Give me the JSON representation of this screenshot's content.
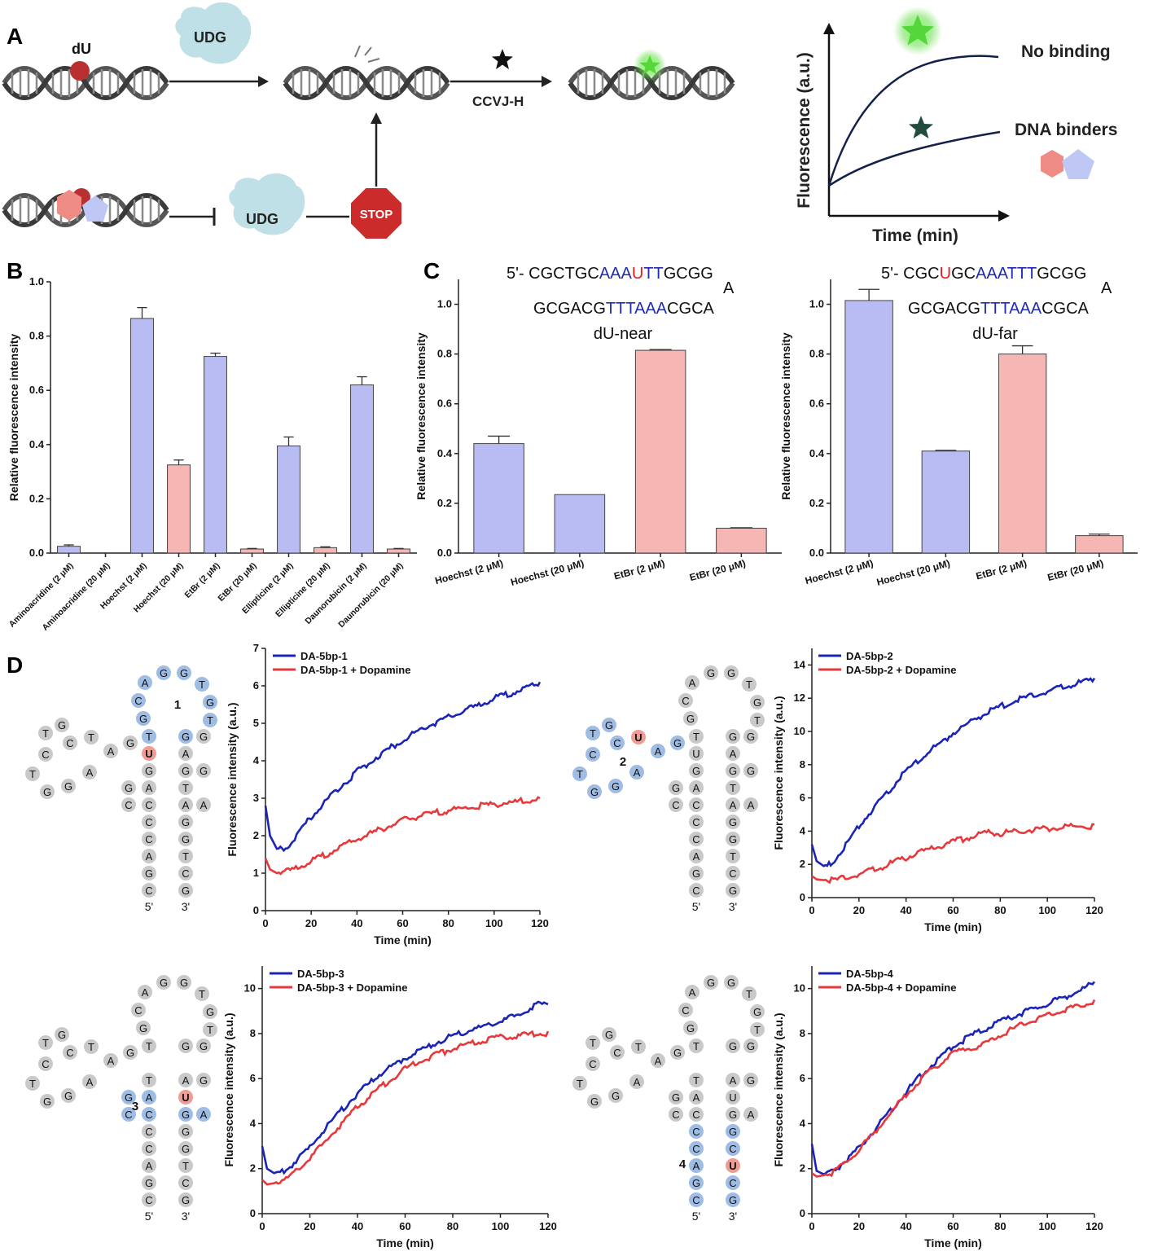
{
  "panel_labels": {
    "a": "A",
    "b": "B",
    "c": "C",
    "d": "D"
  },
  "colors": {
    "bar_blue": "#b9bcf3",
    "bar_red": "#f5b6b4",
    "line_blue": "#1a24b8",
    "line_red": "#e8383c",
    "nt_grey": "#c9c9c9",
    "nt_blue": "#9fbce4",
    "nt_red": "#ee9c95",
    "udg": "#bfe0e6",
    "stop": "#cc2b2b",
    "glow_green": "#5fe05f",
    "dark_star": "#244b40"
  },
  "schematic": {
    "du_label": "dU",
    "udg_label": "UDG",
    "udg_label_2": "UDG",
    "ccvj_label": "CCVJ-H",
    "stop_label": "STOP",
    "curve_label_top": "No binding",
    "curve_label_bottom": "DNA binders",
    "x_axis_label": "Time (min)",
    "y_axis_label": "Fluorescence (a.u.)",
    "icons": [
      "dna-helix-icon",
      "udg-enzyme-icon",
      "star-icon",
      "stop-sign-icon",
      "hexagon-icon",
      "pentagon-icon"
    ]
  },
  "hairpin_c_near": {
    "line1_prefix": "5'- CGCTGC",
    "line1_blue_a": "AAA",
    "line1_red": "U",
    "line1_blue_b": "TT",
    "line1_suffix": "GCGG",
    "loop_base": "A",
    "line2_prefix": "GCGACG",
    "line2_blue": "TTTAAA",
    "line2_suffix": "CGCA",
    "name": "dU-near"
  },
  "hairpin_c_far": {
    "line1_prefix": "5'- CGC",
    "line1_red": "U",
    "line1_mid": "GC",
    "line1_blue": "AAATTT",
    "line1_suffix": "GCGG",
    "loop_base": "A",
    "line2_prefix": "GCGACG",
    "line2_blue": "TTTAAA",
    "line2_suffix": "CGCA",
    "name": "dU-far"
  },
  "dna_structures": [
    {
      "region_label": "1"
    },
    {
      "region_label": "2"
    },
    {
      "region_label": "3"
    },
    {
      "region_label": "4"
    }
  ],
  "structure_end_labels": {
    "five": "5'",
    "three": "3'"
  },
  "chart_data": [
    {
      "id": "B",
      "type": "bar",
      "ylabel": "Relative fluorescence intensity",
      "ylim": [
        0,
        1.0
      ],
      "yticks": [
        "0.0",
        "0.2",
        "0.4",
        "0.6",
        "0.8",
        "1.0"
      ],
      "categories": [
        "Aminoacridine (2 μM)",
        "Aminoacridine (20 μM)",
        "Hoechst (2 μM)",
        "Hoechst (20 μM)",
        "EtBr (2 μM)",
        "EtBr (20 μM)",
        "Ellipticine (2 μM)",
        "Ellipticine (20 μM)",
        "Daunorubicin (2 μM)",
        "Daunorubicin (20 μM)"
      ],
      "values": [
        0.025,
        0.0,
        0.865,
        0.325,
        0.725,
        0.015,
        0.395,
        0.02,
        0.62,
        0.015
      ],
      "errors": [
        0.005,
        0.0,
        0.04,
        0.018,
        0.012,
        0.002,
        0.033,
        0.003,
        0.03,
        0.002
      ],
      "bar_colors": [
        "blue",
        "red",
        "blue",
        "red",
        "blue",
        "red",
        "blue",
        "red",
        "blue",
        "red"
      ]
    },
    {
      "id": "C-near",
      "type": "bar",
      "ylabel": "Relative fluorescence intensity",
      "ylim": [
        0,
        1.1
      ],
      "yticks": [
        "0.0",
        "0.2",
        "0.4",
        "0.6",
        "0.8",
        "1.0"
      ],
      "categories": [
        "Hoechst (2 μM)",
        "Hoechst (20 μM)",
        "EtBr (2 μM)",
        "EtBr (20 μM)"
      ],
      "values": [
        0.44,
        0.235,
        0.815,
        0.1
      ],
      "errors": [
        0.03,
        0.0,
        0.003,
        0.002
      ],
      "bar_colors": [
        "blue",
        "blue",
        "red",
        "red"
      ]
    },
    {
      "id": "C-far",
      "type": "bar",
      "ylabel": "Relative fluorescence intensity",
      "ylim": [
        0,
        1.1
      ],
      "yticks": [
        "0.0",
        "0.2",
        "0.4",
        "0.6",
        "0.8",
        "1.0"
      ],
      "categories": [
        "Hoechst (2 μM)",
        "Hoechst (20 μM)",
        "EtBr (2 μM)",
        "EtBr (20 μM)"
      ],
      "values": [
        1.015,
        0.41,
        0.8,
        0.07
      ],
      "errors": [
        0.045,
        0.003,
        0.033,
        0.006
      ],
      "bar_colors": [
        "blue",
        "blue",
        "red",
        "red"
      ]
    },
    {
      "id": "D1",
      "type": "line",
      "xlabel": "Time (min)",
      "ylabel": "Fluorescence intensity (a.u.)",
      "xlim": [
        0,
        120
      ],
      "ylim": [
        0,
        7
      ],
      "xticks": [
        0,
        20,
        40,
        60,
        80,
        100,
        120
      ],
      "yticks": [
        0,
        1,
        2,
        3,
        4,
        5,
        6,
        7
      ],
      "series": [
        {
          "name": "DA-5bp-1",
          "color": "blue",
          "x": [
            0,
            2,
            5,
            8,
            12,
            20,
            30,
            40,
            50,
            60,
            70,
            80,
            90,
            100,
            110,
            120
          ],
          "y": [
            2.8,
            2.0,
            1.65,
            1.68,
            1.9,
            2.55,
            3.2,
            3.75,
            4.2,
            4.6,
            4.95,
            5.2,
            5.45,
            5.7,
            5.9,
            6.1
          ]
        },
        {
          "name": "DA-5bp-1 + Dopamine",
          "color": "red",
          "x": [
            0,
            2,
            5,
            10,
            20,
            30,
            40,
            50,
            60,
            70,
            80,
            90,
            100,
            110,
            120
          ],
          "y": [
            1.4,
            1.1,
            1.0,
            1.1,
            1.35,
            1.65,
            1.95,
            2.2,
            2.45,
            2.6,
            2.72,
            2.8,
            2.88,
            2.95,
            3.0
          ]
        }
      ]
    },
    {
      "id": "D2",
      "type": "line",
      "xlabel": "Time (min)",
      "ylabel": "Fluorescence intensity (a.u.)",
      "xlim": [
        0,
        120
      ],
      "ylim": [
        0,
        15
      ],
      "xticks": [
        0,
        20,
        40,
        60,
        80,
        100,
        120
      ],
      "yticks": [
        0,
        2,
        4,
        6,
        8,
        10,
        12,
        14
      ],
      "series": [
        {
          "name": "DA-5bp-2",
          "color": "blue",
          "x": [
            0,
            2,
            5,
            8,
            12,
            20,
            30,
            40,
            50,
            60,
            70,
            80,
            90,
            100,
            110,
            120
          ],
          "y": [
            3.2,
            2.2,
            1.9,
            2.1,
            2.8,
            4.4,
            6.1,
            7.7,
            8.9,
            10.0,
            10.9,
            11.6,
            12.1,
            12.5,
            12.9,
            13.2
          ]
        },
        {
          "name": "DA-5bp-2 + Dopamine",
          "color": "red",
          "x": [
            0,
            2,
            5,
            10,
            20,
            30,
            40,
            50,
            60,
            70,
            75,
            80,
            90,
            100,
            110,
            120
          ],
          "y": [
            1.3,
            1.1,
            1.05,
            1.15,
            1.5,
            1.95,
            2.5,
            3.0,
            3.45,
            3.85,
            4.05,
            3.95,
            4.1,
            4.25,
            4.35,
            4.4
          ]
        }
      ]
    },
    {
      "id": "D3",
      "type": "line",
      "xlabel": "Time (min)",
      "ylabel": "Fluorescence intensity (a.u.)",
      "xlim": [
        0,
        120
      ],
      "ylim": [
        0,
        11
      ],
      "xticks": [
        0,
        20,
        40,
        60,
        80,
        100,
        120
      ],
      "yticks": [
        0,
        2,
        4,
        6,
        8,
        10
      ],
      "series": [
        {
          "name": "DA-5bp-3",
          "color": "blue",
          "x": [
            0,
            2,
            5,
            10,
            20,
            30,
            40,
            50,
            60,
            70,
            80,
            90,
            100,
            110,
            115,
            120
          ],
          "y": [
            3.0,
            2.0,
            1.8,
            2.0,
            3.0,
            4.3,
            5.4,
            6.3,
            7.0,
            7.5,
            8.0,
            8.3,
            8.6,
            9.0,
            9.4,
            9.3
          ]
        },
        {
          "name": "DA-5bp-3 + Dopamine",
          "color": "red",
          "x": [
            0,
            2,
            5,
            10,
            20,
            30,
            40,
            50,
            60,
            70,
            80,
            90,
            100,
            110,
            120
          ],
          "y": [
            1.5,
            1.3,
            1.35,
            1.6,
            2.5,
            3.7,
            4.8,
            5.7,
            6.5,
            7.0,
            7.4,
            7.7,
            7.9,
            8.0,
            8.1
          ]
        }
      ]
    },
    {
      "id": "D4",
      "type": "line",
      "xlabel": "Time (min)",
      "ylabel": "Fluorescence intensity (a.u.)",
      "xlim": [
        0,
        120
      ],
      "ylim": [
        0,
        11
      ],
      "xticks": [
        0,
        20,
        40,
        60,
        80,
        100,
        120
      ],
      "yticks": [
        0,
        2,
        4,
        6,
        8,
        10
      ],
      "series": [
        {
          "name": "DA-5bp-4",
          "color": "blue",
          "x": [
            0,
            2,
            5,
            10,
            20,
            30,
            40,
            50,
            60,
            70,
            80,
            90,
            100,
            110,
            120
          ],
          "y": [
            3.1,
            1.9,
            1.75,
            2.0,
            3.0,
            4.2,
            5.5,
            6.6,
            7.5,
            8.1,
            8.6,
            9.0,
            9.4,
            9.8,
            10.3
          ]
        },
        {
          "name": "DA-5bp-4 + Dopamine",
          "color": "red",
          "x": [
            0,
            2,
            5,
            10,
            20,
            30,
            40,
            50,
            60,
            65,
            70,
            80,
            90,
            100,
            110,
            120
          ],
          "y": [
            1.8,
            1.65,
            1.7,
            1.95,
            2.9,
            4.1,
            5.35,
            6.4,
            7.2,
            7.4,
            7.4,
            8.0,
            8.5,
            8.9,
            9.2,
            9.5
          ]
        }
      ]
    }
  ]
}
